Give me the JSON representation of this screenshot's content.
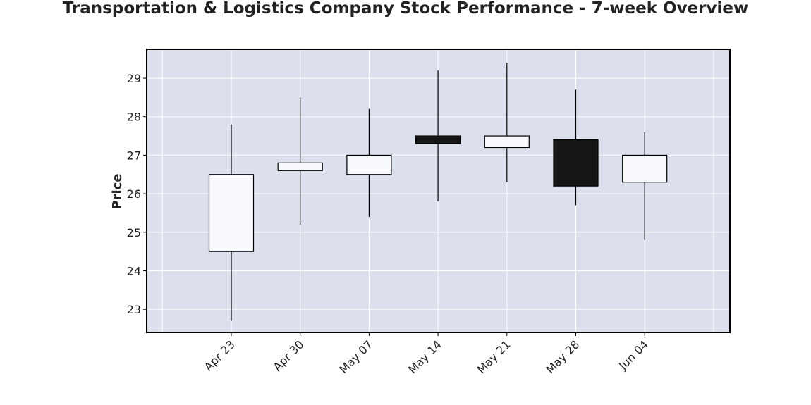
{
  "chart_data": {
    "type": "candlestick",
    "title": "Transportation & Logistics Company Stock Performance - 7-week Overview",
    "xlabel": "",
    "ylabel": "Price",
    "ylim": [
      22.4,
      29.75
    ],
    "yticks": [
      23,
      24,
      25,
      26,
      27,
      28,
      29
    ],
    "grid": true,
    "colors": {
      "background": "#dce0ed",
      "grid": "#ffffff",
      "up": "#f8f9fc",
      "down": "#151515",
      "wick": "#000000",
      "frame": "#000000"
    },
    "categories": [
      "Apr 23",
      "Apr 30",
      "May 07",
      "May 14",
      "May 21",
      "May 28",
      "Jun 04"
    ],
    "series": [
      {
        "open": 24.5,
        "high": 27.8,
        "low": 22.7,
        "close": 26.5
      },
      {
        "open": 26.6,
        "high": 28.5,
        "low": 25.2,
        "close": 26.8
      },
      {
        "open": 26.5,
        "high": 28.2,
        "low": 25.4,
        "close": 27.0
      },
      {
        "open": 27.5,
        "high": 29.2,
        "low": 25.8,
        "close": 27.3
      },
      {
        "open": 27.2,
        "high": 29.4,
        "low": 26.3,
        "close": 27.5
      },
      {
        "open": 27.4,
        "high": 28.7,
        "low": 25.7,
        "close": 26.2
      },
      {
        "open": 26.3,
        "high": 27.6,
        "low": 24.8,
        "close": 27.0
      }
    ]
  }
}
